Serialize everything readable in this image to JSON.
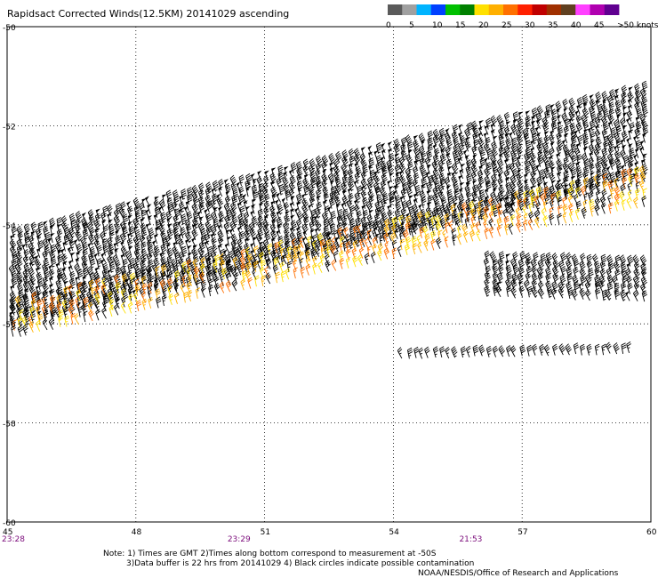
{
  "title": "Rapidsact Corrected Winds(12.5KM) 20141029 ascending",
  "legend": {
    "colors": [
      "#5a5a5a",
      "#a0a0a0",
      "#00b4ff",
      "#0040ff",
      "#00c000",
      "#008000",
      "#ffe000",
      "#ffb000",
      "#ff7000",
      "#ff2000",
      "#c00000",
      "#a03000",
      "#604020",
      "#ff40ff",
      "#b000b0",
      "#600090"
    ],
    "labels": [
      "0",
      "5",
      "10",
      "15",
      "20",
      "25",
      "30",
      "35",
      "40",
      "45",
      ">50 knots"
    ]
  },
  "chart_data": {
    "type": "scatter",
    "title": "Rapidsact Corrected Winds(12.5KM) 20141029 ascending",
    "xlim": [
      45,
      60
    ],
    "ylim": [
      -60,
      -50
    ],
    "x_ticks": [
      "45",
      "48",
      "51",
      "54",
      "57",
      "60"
    ],
    "y_ticks": [
      "-50",
      "-52",
      "-54",
      "-56",
      "-58",
      "-60"
    ],
    "grid": true,
    "time_labels": [
      {
        "x": 45,
        "label": "23:28"
      },
      {
        "x": 50.3,
        "label": "23:29"
      },
      {
        "x": 55.7,
        "label": "21:53"
      }
    ],
    "swaths": [
      {
        "x0": 45,
        "y0": -55.2,
        "x1": 60,
        "y1": -52.2,
        "halfwidth": 0.9,
        "speed_knots": 45,
        "color": "#000000"
      },
      {
        "x0": 45,
        "y0": -56.0,
        "x1": 60,
        "y1": -53.3,
        "halfwidth": 0.3,
        "speed_knots": 25,
        "color_cycle": [
          "#ffb000",
          "#ff7000",
          "#ffe000",
          "#000000"
        ]
      },
      {
        "x0": 56.2,
        "y0": -55.1,
        "x1": 60,
        "y1": -55.2,
        "halfwidth": 0.35,
        "speed_knots": 40,
        "color": "#000000"
      },
      {
        "x0": 54.2,
        "y0": -56.7,
        "x1": 59.5,
        "y1": -56.6,
        "halfwidth": 0.05,
        "speed_knots": 35,
        "color": "#000000"
      }
    ]
  },
  "notes": {
    "line1": "Note: 1) Times are GMT 2)Times along bottom correspond to measurement at -50S",
    "line2": "3)Data buffer is 22 hrs from 20141029 4) Black circles indicate possible contamination",
    "line3": "NOAA/NESDIS/Office of Research and Applications"
  }
}
